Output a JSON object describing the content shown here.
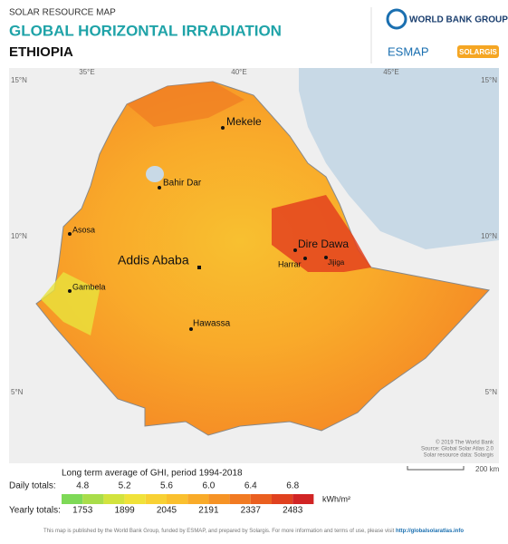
{
  "header": {
    "kicker": "SOLAR RESOURCE MAP",
    "title": "GLOBAL HORIZONTAL IRRADIATION",
    "country": "ETHIOPIA"
  },
  "logos": {
    "world_bank": "WORLD BANK GROUP",
    "esmap": "ESMAP",
    "solargis": "SOLARGIS"
  },
  "map": {
    "lon_labels": [
      "35°E",
      "40°E",
      "45°E"
    ],
    "lat_labels": [
      "15°N",
      "10°N",
      "5°N"
    ],
    "cities": [
      "Mekele",
      "Bahir Dar",
      "Asosa",
      "Addis Ababa",
      "Dire Dawa",
      "Harrar",
      "Jijiga",
      "Gambela",
      "Hawassa"
    ],
    "credits": [
      "© 2019 The World Bank",
      "Source: Global Solar Atlas 2.0",
      "Solar resource data: Solargis"
    ],
    "scale": "200 km"
  },
  "legend": {
    "title": "Long term average of GHI, period 1994-2018",
    "daily_label": "Daily totals:",
    "daily": [
      "4.8",
      "5.2",
      "5.6",
      "6.0",
      "6.4",
      "6.8"
    ],
    "unit": "kWh/m²",
    "yearly_label": "Yearly totals:",
    "yearly": [
      "1753",
      "1899",
      "2045",
      "2191",
      "2337",
      "2483"
    ]
  },
  "footer": {
    "text": "This map is published by the World Bank Group, funded by ESMAP, and prepared by Solargis. For more information and terms of use, please visit ",
    "link": "http://globalsolaratlas.info"
  }
}
